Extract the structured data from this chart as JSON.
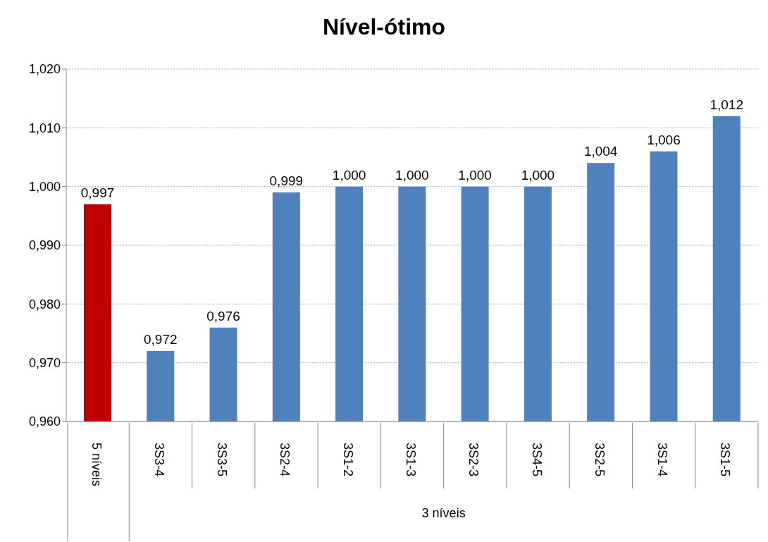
{
  "chart_data": {
    "type": "bar",
    "title": "Nível-ótimo",
    "categories": [
      "5 níveis",
      "3S3-4",
      "3S3-5",
      "3S2-4",
      "3S1-2",
      "3S1-3",
      "3S2-3",
      "3S4-5",
      "3S2-5",
      "3S1-4",
      "3S1-5"
    ],
    "values": [
      0.997,
      0.972,
      0.976,
      0.999,
      1.0,
      1.0,
      1.0,
      1.0,
      1.004,
      1.006,
      1.012
    ],
    "colors": [
      "#c00000",
      "#4f81bd",
      "#4f81bd",
      "#4f81bd",
      "#4f81bd",
      "#4f81bd",
      "#4f81bd",
      "#4f81bd",
      "#4f81bd",
      "#4f81bd",
      "#4f81bd"
    ],
    "value_labels": [
      "0,997",
      "0,972",
      "0,976",
      "0,999",
      "1,000",
      "1,000",
      "1,000",
      "1,000",
      "1,004",
      "1,006",
      "1,012"
    ],
    "ylim": [
      0.96,
      1.02
    ],
    "yticks": [
      {
        "value": 0.96,
        "label": "0,960"
      },
      {
        "value": 0.97,
        "label": "0,970"
      },
      {
        "value": 0.98,
        "label": "0,980"
      },
      {
        "value": 0.99,
        "label": "0,990"
      },
      {
        "value": 1.0,
        "label": "1,000"
      },
      {
        "value": 1.01,
        "label": "1,010"
      },
      {
        "value": 1.02,
        "label": "1,020"
      }
    ],
    "grid": "y",
    "annotations": [
      "3 níveis"
    ]
  }
}
